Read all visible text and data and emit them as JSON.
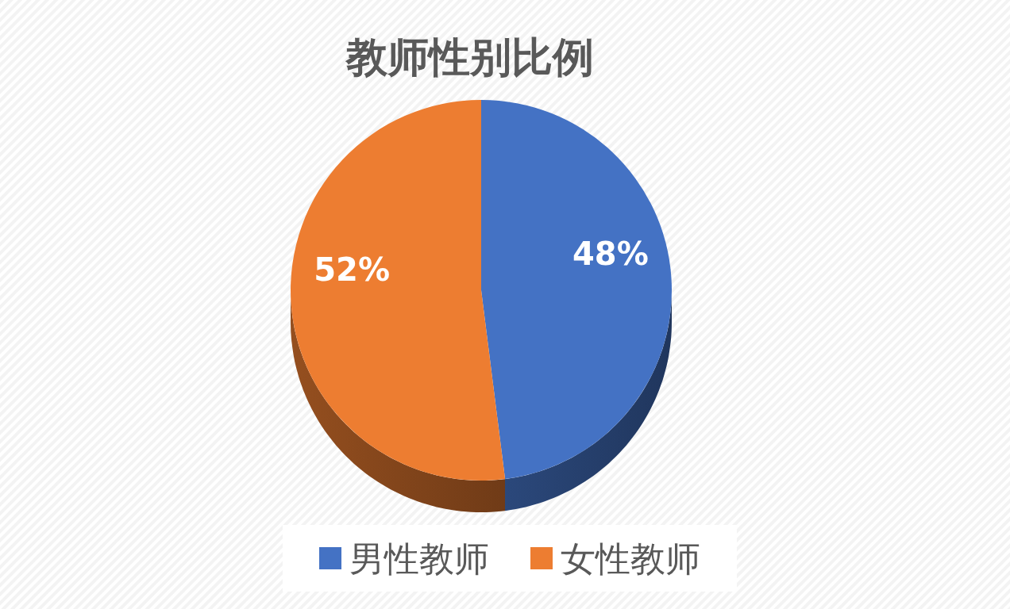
{
  "chart_data": {
    "type": "pie",
    "title": "教师性别比例",
    "categories": [
      "男性教师",
      "女性教师"
    ],
    "values": [
      48,
      52
    ],
    "colors": [
      "#4472c4",
      "#ed7d31"
    ],
    "value_labels": [
      "48%",
      "52%"
    ],
    "legend": "bottom"
  }
}
